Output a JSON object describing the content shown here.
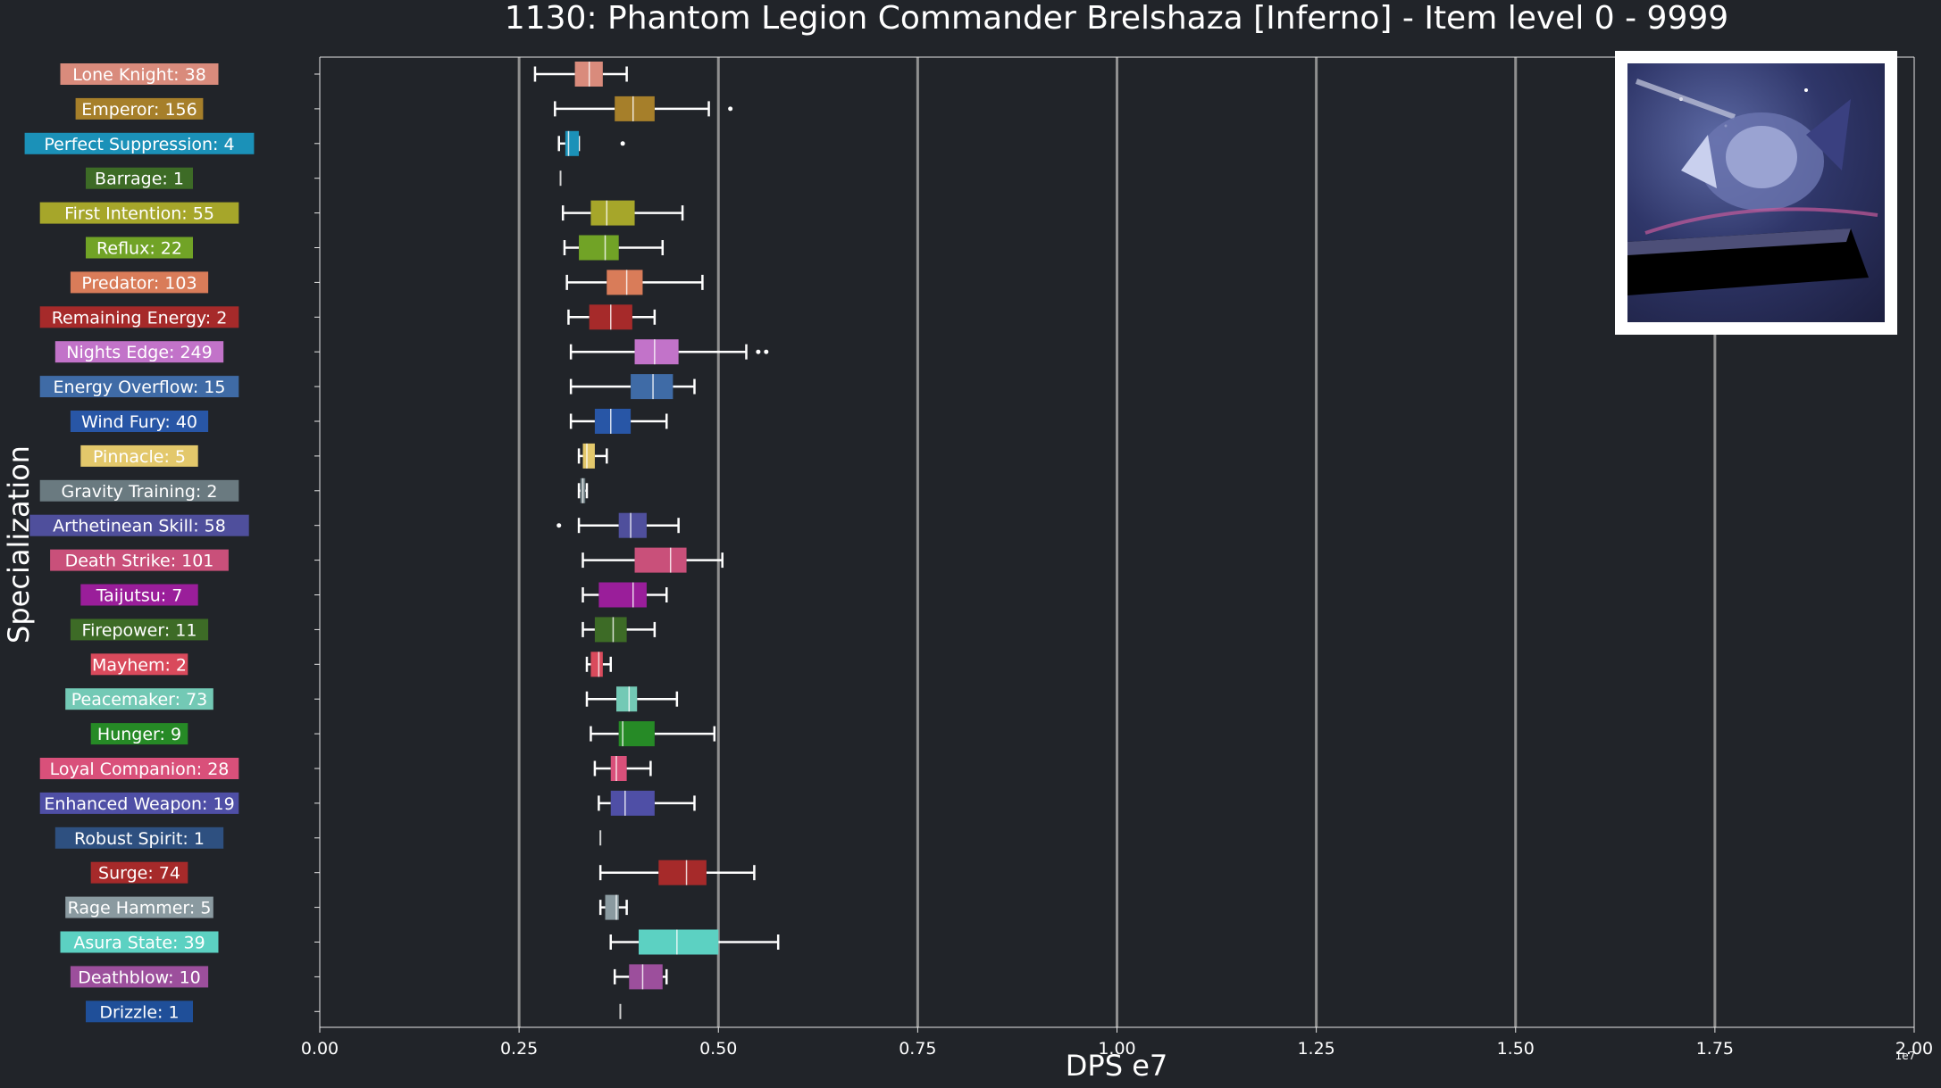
{
  "chart_data": {
    "type": "boxplot",
    "orientation": "horizontal",
    "title": "1130: Phantom Legion Commander Brelshaza [Inferno] - Item level 0 - 9999",
    "xlabel": "DPS e7",
    "ylabel": "Specialization",
    "x_offset_label": "1e7",
    "xlim": [
      0,
      20000000
    ],
    "x_ticks": [
      {
        "value": 0,
        "label": "0.00"
      },
      {
        "value": 2500000,
        "label": "0.25"
      },
      {
        "value": 5000000,
        "label": "0.50"
      },
      {
        "value": 7500000,
        "label": "0.75"
      },
      {
        "value": 10000000,
        "label": "1.00"
      },
      {
        "value": 12500000,
        "label": "1.25"
      },
      {
        "value": 15000000,
        "label": "1.50"
      },
      {
        "value": 17500000,
        "label": "1.75"
      },
      {
        "value": 20000000,
        "label": "2.00"
      }
    ],
    "grid": "vertical",
    "series": [
      {
        "label": "Lone Knight: 38",
        "color": "#d98b7c",
        "whislo": 2.7,
        "q1": 3.2,
        "med": 3.38,
        "q3": 3.55,
        "whishi": 3.85,
        "fliers": []
      },
      {
        "label": "Emperor: 156",
        "color": "#a67f2a",
        "whislo": 2.95,
        "q1": 3.7,
        "med": 3.93,
        "q3": 4.2,
        "whishi": 4.88,
        "fliers": [
          5.15
        ]
      },
      {
        "label": "Perfect Suppression: 4",
        "color": "#1b91b8",
        "whislo": 3.0,
        "q1": 3.08,
        "med": 3.12,
        "q3": 3.25,
        "whishi": 3.25,
        "fliers": [
          3.8
        ]
      },
      {
        "label": "Barrage: 1",
        "color": "#3d6b26",
        "whislo": 3.02,
        "q1": 3.02,
        "med": 3.02,
        "q3": 3.02,
        "whishi": 3.02,
        "fliers": []
      },
      {
        "label": "First Intention: 55",
        "color": "#a6a62a",
        "whislo": 3.05,
        "q1": 3.4,
        "med": 3.6,
        "q3": 3.95,
        "whishi": 4.55,
        "fliers": []
      },
      {
        "label": "Reflux: 22",
        "color": "#71a326",
        "whislo": 3.07,
        "q1": 3.25,
        "med": 3.58,
        "q3": 3.75,
        "whishi": 4.3,
        "fliers": []
      },
      {
        "label": "Predator: 103",
        "color": "#d97c59",
        "whislo": 3.1,
        "q1": 3.6,
        "med": 3.85,
        "q3": 4.05,
        "whishi": 4.8,
        "fliers": []
      },
      {
        "label": "Remaining Energy: 2",
        "color": "#a62a2a",
        "whislo": 3.12,
        "q1": 3.38,
        "med": 3.65,
        "q3": 3.92,
        "whishi": 4.2,
        "fliers": []
      },
      {
        "label": "Nights Edge: 249",
        "color": "#c273c9",
        "whislo": 3.15,
        "q1": 3.95,
        "med": 4.2,
        "q3": 4.5,
        "whishi": 5.35,
        "fliers": [
          5.5,
          5.6
        ]
      },
      {
        "label": "Energy Overflow: 15",
        "color": "#3f6ba6",
        "whislo": 3.15,
        "q1": 3.9,
        "med": 4.18,
        "q3": 4.43,
        "whishi": 4.7,
        "fliers": []
      },
      {
        "label": "Wind Fury: 40",
        "color": "#2856a6",
        "whislo": 3.15,
        "q1": 3.45,
        "med": 3.65,
        "q3": 3.9,
        "whishi": 4.35,
        "fliers": []
      },
      {
        "label": "Pinnacle: 5",
        "color": "#e3c86b",
        "whislo": 3.25,
        "q1": 3.3,
        "med": 3.35,
        "q3": 3.45,
        "whishi": 3.6,
        "fliers": []
      },
      {
        "label": "Gravity Training: 2",
        "color": "#6a7a80",
        "whislo": 3.25,
        "q1": 3.27,
        "med": 3.3,
        "q3": 3.33,
        "whishi": 3.35,
        "fliers": []
      },
      {
        "label": "Arthetinean Skill: 58",
        "color": "#4f4f9c",
        "whislo": 3.25,
        "q1": 3.75,
        "med": 3.9,
        "q3": 4.1,
        "whishi": 4.5,
        "fliers": [
          3.0
        ]
      },
      {
        "label": "Death Strike: 101",
        "color": "#c9507a",
        "whislo": 3.3,
        "q1": 3.95,
        "med": 4.4,
        "q3": 4.6,
        "whishi": 5.05,
        "fliers": []
      },
      {
        "label": "Taijutsu: 7",
        "color": "#9a1e9a",
        "whislo": 3.3,
        "q1": 3.5,
        "med": 3.93,
        "q3": 4.1,
        "whishi": 4.35,
        "fliers": []
      },
      {
        "label": "Firepower: 11",
        "color": "#3d6b26",
        "whislo": 3.3,
        "q1": 3.45,
        "med": 3.68,
        "q3": 3.85,
        "whishi": 4.2,
        "fliers": []
      },
      {
        "label": "Mayhem: 2",
        "color": "#d94a5c",
        "whislo": 3.35,
        "q1": 3.4,
        "med": 3.5,
        "q3": 3.55,
        "whishi": 3.65,
        "fliers": []
      },
      {
        "label": "Peacemaker: 73",
        "color": "#73c9b5",
        "whislo": 3.35,
        "q1": 3.72,
        "med": 3.88,
        "q3": 3.98,
        "whishi": 4.48,
        "fliers": []
      },
      {
        "label": "Hunger: 9",
        "color": "#268a26",
        "whislo": 3.4,
        "q1": 3.75,
        "med": 3.8,
        "q3": 4.2,
        "whishi": 4.95,
        "fliers": []
      },
      {
        "label": "Loyal Companion: 28",
        "color": "#d9507a",
        "whislo": 3.45,
        "q1": 3.65,
        "med": 3.72,
        "q3": 3.85,
        "whishi": 4.15,
        "fliers": []
      },
      {
        "label": "Enhanced Weapon: 19",
        "color": "#4f4fa6",
        "whislo": 3.5,
        "q1": 3.65,
        "med": 3.83,
        "q3": 4.2,
        "whishi": 4.7,
        "fliers": []
      },
      {
        "label": "Robust Spirit: 1",
        "color": "#2e5080",
        "whislo": 3.52,
        "q1": 3.52,
        "med": 3.52,
        "q3": 3.52,
        "whishi": 3.52,
        "fliers": []
      },
      {
        "label": "Surge: 74",
        "color": "#a62a2a",
        "whislo": 3.52,
        "q1": 4.25,
        "med": 4.6,
        "q3": 4.85,
        "whishi": 5.45,
        "fliers": []
      },
      {
        "label": "Rage Hammer: 5",
        "color": "#8a9aa0",
        "whislo": 3.52,
        "q1": 3.58,
        "med": 3.72,
        "q3": 3.75,
        "whishi": 3.85,
        "fliers": []
      },
      {
        "label": "Asura State: 39",
        "color": "#5cd1c2",
        "whislo": 3.65,
        "q1": 4.0,
        "med": 4.48,
        "q3": 5.0,
        "whishi": 5.75,
        "fliers": []
      },
      {
        "label": "Deathblow: 10",
        "color": "#9c4f9c",
        "whislo": 3.7,
        "q1": 3.88,
        "med": 4.05,
        "q3": 4.3,
        "whishi": 4.35,
        "fliers": []
      },
      {
        "label": "Drizzle: 1",
        "color": "#1f4f99",
        "whislo": 3.77,
        "q1": 3.77,
        "med": 3.77,
        "q3": 3.77,
        "whishi": 3.77,
        "fliers": []
      }
    ],
    "value_scale_note": "box statistics in millions of DPS"
  },
  "colors": {
    "background": "#212429",
    "axis": "#e6e6e6",
    "grid": "#8f8f8f",
    "text": "#ffffff"
  },
  "thumbnail": {
    "icon": "raid-boss-portrait"
  }
}
